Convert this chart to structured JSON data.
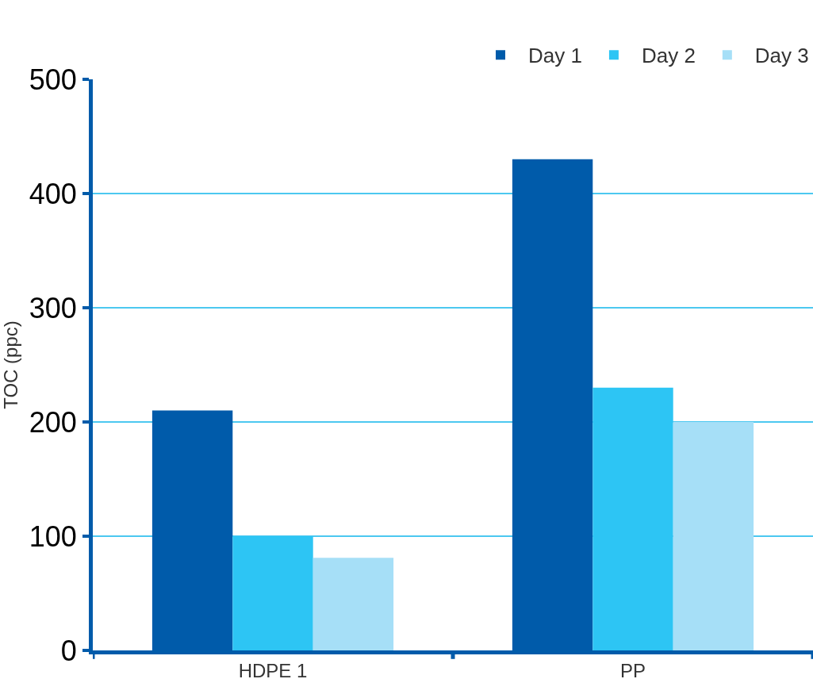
{
  "chart_data": {
    "type": "bar",
    "ylabel": "TOC (ppc)",
    "categories": [
      "HDPE 1",
      "PP"
    ],
    "series": [
      {
        "name": "Day 1",
        "color": "#005baa",
        "values": [
          210,
          430
        ]
      },
      {
        "name": "Day 2",
        "color": "#2dc5f4",
        "values": [
          100,
          230
        ]
      },
      {
        "name": "Day 3",
        "color": "#a6dff7",
        "values": [
          81,
          200
        ]
      }
    ],
    "ylim": [
      0,
      500
    ],
    "yticks": [
      0,
      100,
      200,
      300,
      400,
      500
    ],
    "grid": "y",
    "legend": "top right"
  }
}
